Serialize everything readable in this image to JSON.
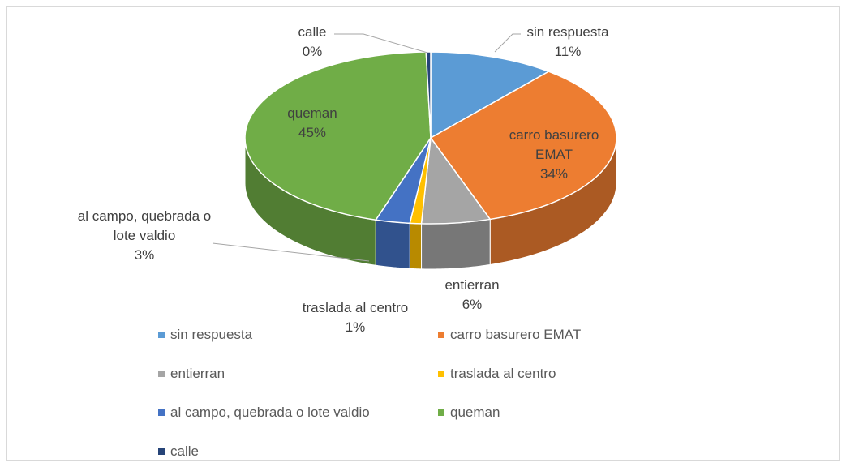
{
  "chart_data": {
    "type": "pie3d",
    "categories": [
      "sin respuesta",
      "carro basurero EMAT",
      "entierran",
      "traslada al centro",
      "al campo, quebrada o lote valdio",
      "queman",
      "calle"
    ],
    "values": [
      11,
      34,
      6,
      1,
      3,
      45,
      0.4
    ],
    "value_labels": [
      "11%",
      "34%",
      "6%",
      "1%",
      "3%",
      "45%",
      "0%"
    ],
    "colors": [
      "#5b9bd5",
      "#ed7d31",
      "#a5a5a5",
      "#ffc000",
      "#4472c4",
      "#70ad47",
      "#264478"
    ],
    "legend": "bottom"
  }
}
